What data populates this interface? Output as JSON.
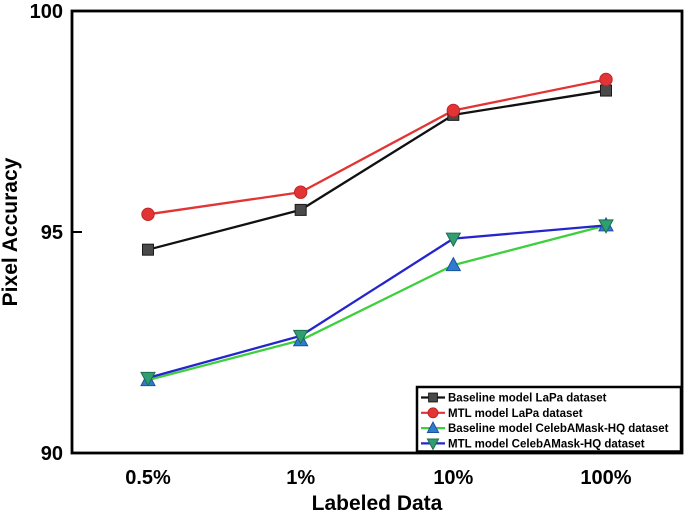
{
  "figure_title": "",
  "chart_data": {
    "type": "line",
    "categories": [
      "0.5%",
      "1%",
      "10%",
      "100%"
    ],
    "x_axis_label": "Labeled Data",
    "y_axis_label": "Pixel Accuracy",
    "ylim": [
      90,
      100
    ],
    "yticks": [
      90,
      95,
      100
    ],
    "grid": false,
    "legend_position": "lower-right-inside",
    "axis_color": "#000000",
    "background_color": "#ffffff",
    "series": [
      {
        "name": "Baseline model LaPa dataset",
        "line_color": "#111111",
        "marker": "square",
        "marker_color": "#4a4a4a",
        "marker_edge": "#1a1a1a",
        "values": [
          94.6,
          95.5,
          97.65,
          98.2
        ]
      },
      {
        "name": "MTL model LaPa dataset",
        "line_color": "#e23434",
        "marker": "circle",
        "marker_color": "#e23434",
        "marker_edge": "#c02525",
        "values": [
          95.4,
          95.9,
          97.75,
          98.45
        ]
      },
      {
        "name": "Baseline model CelebAMask-HQ dataset",
        "line_color": "#3ecf3e",
        "marker": "triangle-up",
        "marker_color": "#2f7ccc",
        "marker_edge": "#1c50a0",
        "values": [
          91.65,
          92.55,
          94.25,
          95.15
        ]
      },
      {
        "name": "MTL model CelebAMask-HQ dataset",
        "line_color": "#2525cc",
        "marker": "triangle-down",
        "marker_color": "#2f9e70",
        "marker_edge": "#1d6e4e",
        "values": [
          91.7,
          92.65,
          94.85,
          95.15
        ]
      }
    ]
  }
}
